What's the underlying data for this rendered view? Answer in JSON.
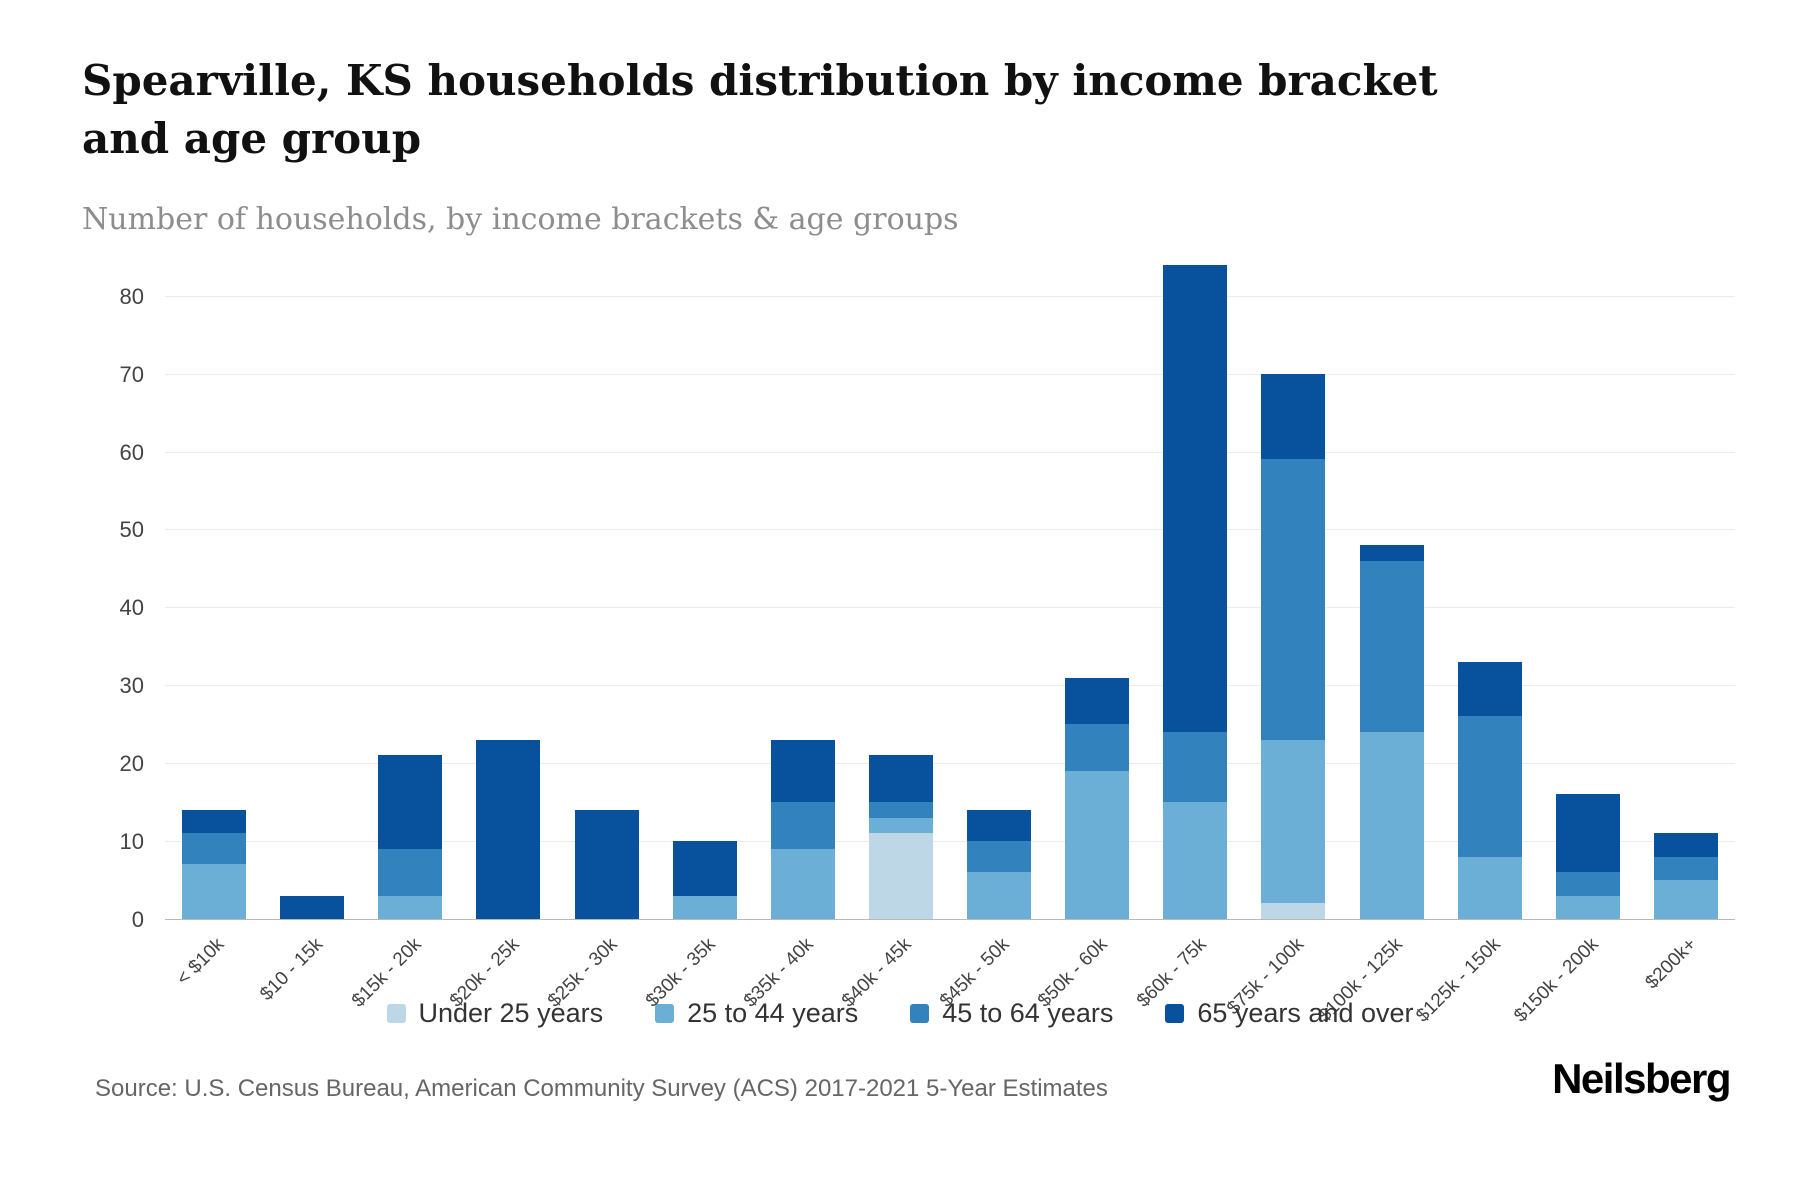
{
  "source": "Source: U.S. Census Bureau, American Community Survey (ACS) 2017-2021 5-Year Estimates",
  "brand": "Neilsberg",
  "chart_data": {
    "type": "bar",
    "stacked": true,
    "title": "Spearville, KS households distribution by income bracket and age group",
    "subtitle": "Number of households, by income brackets & age groups",
    "categories": [
      "< $10k",
      "$10 - 15k",
      "$15k - 20k",
      "$20k - 25k",
      "$25k - 30k",
      "$30k - 35k",
      "$35k - 40k",
      "$40k - 45k",
      "$45k - 50k",
      "$50k - 60k",
      "$60k - 75k",
      "$75k - 100k",
      "$100k - 125k",
      "$125k - 150k",
      "$150k - 200k",
      "$200k+"
    ],
    "series": [
      {
        "name": "Under 25 years",
        "color": "#bdd7e7",
        "values": [
          0,
          0,
          0,
          0,
          0,
          0,
          0,
          11,
          0,
          0,
          0,
          2,
          0,
          0,
          0,
          0
        ]
      },
      {
        "name": "25 to 44 years",
        "color": "#6baed6",
        "values": [
          7,
          0,
          3,
          0,
          0,
          3,
          9,
          2,
          6,
          19,
          15,
          21,
          24,
          8,
          3,
          5
        ]
      },
      {
        "name": "45 to 64 years",
        "color": "#3182bd",
        "values": [
          4,
          0,
          6,
          0,
          0,
          0,
          6,
          2,
          4,
          6,
          9,
          36,
          22,
          18,
          3,
          3
        ]
      },
      {
        "name": "65 years and over",
        "color": "#08519c",
        "values": [
          3,
          3,
          12,
          23,
          14,
          7,
          8,
          6,
          4,
          6,
          60,
          11,
          2,
          7,
          10,
          3
        ]
      }
    ],
    "totals": [
      14,
      3,
      21,
      23,
      14,
      10,
      23,
      21,
      14,
      31,
      84,
      70,
      48,
      33,
      16,
      11
    ],
    "yticks": [
      0,
      10,
      20,
      30,
      40,
      50,
      60,
      70,
      80
    ],
    "ylim": [
      0,
      86
    ],
    "ylabel": "",
    "xlabel": "",
    "grid": true,
    "legend_position": "bottom"
  }
}
